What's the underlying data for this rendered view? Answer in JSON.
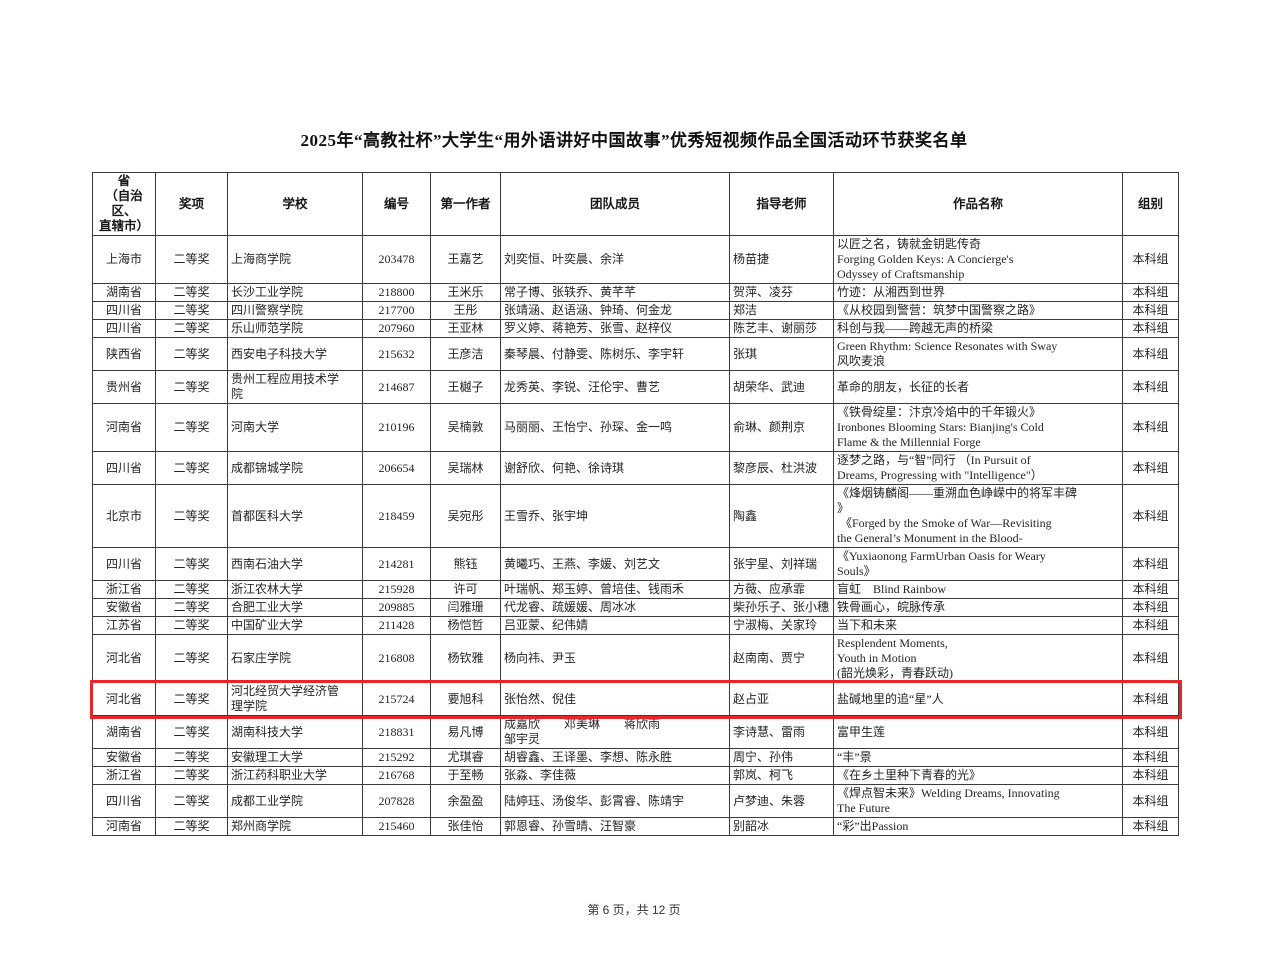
{
  "page": {
    "title": "2025年“高教社杯”大学生“用外语讲好中国故事”优秀短视频作品全国活动环节获奖名单",
    "footer": "第 6 页，共 12 页"
  },
  "colors": {
    "highlight_border": "#e8262a",
    "table_border": "#3c3c3c",
    "page_background": "#ffffff"
  },
  "table": {
    "fields": [
      "province",
      "award",
      "school",
      "number",
      "author",
      "team",
      "advisors",
      "title",
      "group"
    ],
    "headers": [
      "省\n（自治区、\n直辖市）",
      "奖项",
      "学校",
      "编号",
      "第一作者",
      "团队成员",
      "指导老师",
      "作品名称",
      "组别"
    ],
    "rows": [
      {
        "province": "上海市",
        "award": "二等奖",
        "school": "上海商学院",
        "number": "203478",
        "author": "王嘉艺",
        "team": "刘奕恒、叶奕晨、余洋",
        "advisors": "杨苗捷",
        "title": "以匠之名，铸就金钥匙传奇\nForging Golden Keys: A Concierge's\nOdyssey of Craftsmanship",
        "group": "本科组",
        "highlighted": false
      },
      {
        "province": "湖南省",
        "award": "二等奖",
        "school": "长沙工业学院",
        "number": "218800",
        "author": "王米乐",
        "team": "常子博、张轶乔、黄芊芊",
        "advisors": "贺萍、凌芬",
        "title": "竹迹：从湘西到世界",
        "group": "本科组",
        "highlighted": false
      },
      {
        "province": "四川省",
        "award": "二等奖",
        "school": "四川警察学院",
        "number": "217700",
        "author": "王彤",
        "team": "张靖涵、赵语涵、钟琦、何金龙",
        "advisors": "郑洁",
        "title": "《从校园到警营：筑梦中国警察之路》",
        "group": "本科组",
        "highlighted": false
      },
      {
        "province": "四川省",
        "award": "二等奖",
        "school": "乐山师范学院",
        "number": "207960",
        "author": "王亚林",
        "team": "罗义婷、蒋艳芳、张雪、赵梓仪",
        "advisors": "陈艺丰、谢丽莎",
        "title": "科创与我——跨越无声的桥梁",
        "group": "本科组",
        "highlighted": false
      },
      {
        "province": "陕西省",
        "award": "二等奖",
        "school": "西安电子科技大学",
        "number": "215632",
        "author": "王彦洁",
        "team": "秦琴晨、付静雯、陈树乐、李宇轩",
        "advisors": "张琪",
        "title": "Green Rhythm: Science Resonates with Sway\n风吹麦浪",
        "group": "本科组",
        "highlighted": false
      },
      {
        "province": "贵州省",
        "award": "二等奖",
        "school": "贵州工程应用技术学\n院",
        "number": "214687",
        "author": "王樾子",
        "team": "龙秀英、李锐、汪伦宇、曹艺",
        "advisors": "胡荣华、武迪",
        "title": "革命的朋友，长征的长者",
        "group": "本科组",
        "highlighted": false
      },
      {
        "province": "河南省",
        "award": "二等奖",
        "school": "河南大学",
        "number": "210196",
        "author": "吴楠敦",
        "team": "马丽丽、王怡宁、孙琛、金一鸣",
        "advisors": "俞琳、颜荆京",
        "title": "《铁骨绽星：汴京冷焰中的千年锻火》\nIronbones Blooming Stars: Bianjing's Cold\nFlame & the Millennial Forge",
        "group": "本科组",
        "highlighted": false
      },
      {
        "province": "四川省",
        "award": "二等奖",
        "school": "成都锦城学院",
        "number": "206654",
        "author": "吴瑞林",
        "team": "谢舒欣、何艳、徐诗琪",
        "advisors": "黎彦辰、杜洪波",
        "title": "逐梦之路，与“智”同行 （In Pursuit of\nDreams, Progressing with \"Intelligence\"）",
        "group": "本科组",
        "highlighted": false
      },
      {
        "province": "北京市",
        "award": "二等奖",
        "school": "首都医科大学",
        "number": "218459",
        "author": "吴宛彤",
        "team": "王雪乔、张宇坤",
        "advisors": "陶鑫",
        "title": "《烽烟铸麟阁——重溯血色峥嵘中的将军丰碑\n》\n 《Forged by the Smoke of War—Revisiting\nthe General’s Monument in the Blood-",
        "group": "本科组",
        "highlighted": false
      },
      {
        "province": "四川省",
        "award": "二等奖",
        "school": "西南石油大学",
        "number": "214281",
        "author": "熊钰",
        "team": "黄曦巧、王燕、李媛、刘艺文",
        "advisors": "张宇星、刘祥瑞",
        "title": "《Yuxiaonong FarmUrban Oasis for Weary\nSouls》",
        "group": "本科组",
        "highlighted": false
      },
      {
        "province": "浙江省",
        "award": "二等奖",
        "school": "浙江农林大学",
        "number": "215928",
        "author": "许可",
        "team": "叶瑞帆、郑玉婷、曾培佳、钱雨禾",
        "advisors": "方薇、应承霏",
        "title": "盲虹　Blind Rainbow",
        "group": "本科组",
        "highlighted": false
      },
      {
        "province": "安徽省",
        "award": "二等奖",
        "school": "合肥工业大学",
        "number": "209885",
        "author": "闫雅珊",
        "team": "代龙睿、疏媛媛、周冰冰",
        "advisors": "柴孙乐子、张小穗",
        "title": "铁骨画心，皖脉传承",
        "group": "本科组",
        "highlighted": false
      },
      {
        "province": "江苏省",
        "award": "二等奖",
        "school": "中国矿业大学",
        "number": "211428",
        "author": "杨恺哲",
        "team": "吕亚蒙、纪伟婧",
        "advisors": "宁淑梅、关家玲",
        "title": "当下和未来",
        "group": "本科组",
        "highlighted": false
      },
      {
        "province": "河北省",
        "award": "二等奖",
        "school": "石家庄学院",
        "number": "216808",
        "author": "杨钦雅",
        "team": "杨向祎、尹玉",
        "advisors": "赵南南、贾宁",
        "title": "Resplendent Moments,\nYouth in Motion\n(韶光焕彩，青春跃动)",
        "group": "本科组",
        "highlighted": false
      },
      {
        "province": "河北省",
        "award": "二等奖",
        "school": "河北经贸大学经济管\n理学院",
        "number": "215724",
        "author": "要旭科",
        "team": "张怡然、倪佳",
        "advisors": "赵占亚",
        "title": "盐碱地里的追“星”人",
        "group": "本科组",
        "highlighted": true
      },
      {
        "province": "湖南省",
        "award": "二等奖",
        "school": "湖南科技大学",
        "number": "218831",
        "author": "易凡博",
        "team": "成嘉欣　　邓美琳　　蒋欣雨\n邹宇灵",
        "advisors": "李诗慧、雷雨",
        "title": "富甲生莲",
        "group": "本科组",
        "highlighted": false
      },
      {
        "province": "安徽省",
        "award": "二等奖",
        "school": "安徽理工大学",
        "number": "215292",
        "author": "尤琪睿",
        "team": "胡睿鑫、王译墨、李想、陈永胜",
        "advisors": "周宁、孙伟",
        "title": "“丰”景",
        "group": "本科组",
        "highlighted": false
      },
      {
        "province": "浙江省",
        "award": "二等奖",
        "school": "浙江药科职业大学",
        "number": "216768",
        "author": "于至畅",
        "team": "张淼、李佳薇",
        "advisors": "郭岚、柯飞",
        "title": "《在乡土里种下青春的光》",
        "group": "本科组",
        "highlighted": false
      },
      {
        "province": "四川省",
        "award": "二等奖",
        "school": "成都工业学院",
        "number": "207828",
        "author": "余盈盈",
        "team": "陆婷珏、汤俊华、彭霄睿、陈靖宇",
        "advisors": "卢梦迪、朱蓉",
        "title": "《焊点智未来》Welding Dreams, Innovating\nThe Future",
        "group": "本科组",
        "highlighted": false
      },
      {
        "province": "河南省",
        "award": "二等奖",
        "school": "郑州商学院",
        "number": "215460",
        "author": "张佳怡",
        "team": "郭恩睿、孙雪晴、汪智豪",
        "advisors": "别韶冰",
        "title": "“彩”出Passion",
        "group": "本科组",
        "highlighted": false
      }
    ]
  }
}
